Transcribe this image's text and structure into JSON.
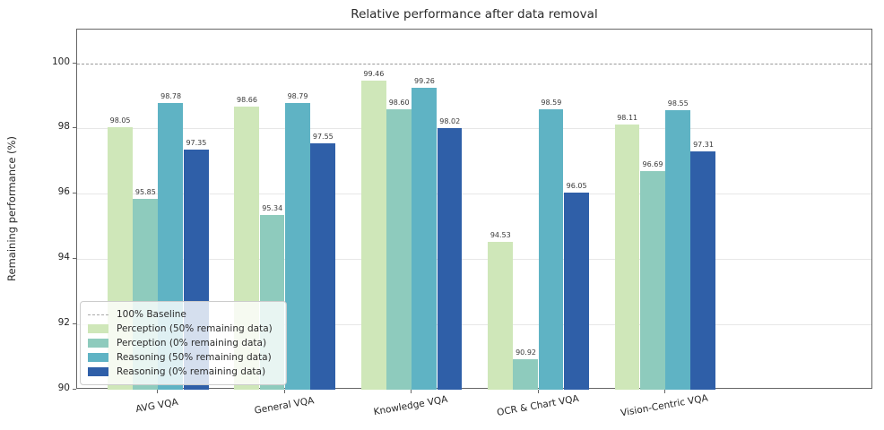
{
  "title": "Relative performance after data removal",
  "chart_data": {
    "type": "bar",
    "title": "Relative performance after data removal",
    "xlabel": "",
    "ylabel": "Remaining performance (%)",
    "categories": [
      "AVG VQA",
      "General VQA",
      "Knowledge VQA",
      "OCR & Chart VQA",
      "Vision-Centric VQA"
    ],
    "series": [
      {
        "name": "Perception (50% remaining data)",
        "color": "#cfe7b9",
        "values": [
          98.05,
          98.66,
          99.46,
          94.53,
          98.11
        ]
      },
      {
        "name": "Perception (0% remaining data)",
        "color": "#8ecbbd",
        "values": [
          95.85,
          95.34,
          98.6,
          90.92,
          96.69
        ]
      },
      {
        "name": "Reasoning (50% remaining data)",
        "color": "#5fb3c4",
        "values": [
          98.78,
          98.79,
          99.26,
          98.59,
          98.55
        ]
      },
      {
        "name": "Reasoning (0% remaining data)",
        "color": "#2f5fa8",
        "values": [
          97.35,
          97.55,
          98.02,
          96.05,
          97.31
        ]
      }
    ],
    "baseline": {
      "label": "100% Baseline",
      "value": 100
    },
    "yticks": [
      90,
      92,
      94,
      96,
      98,
      100
    ],
    "ylim": [
      90,
      101.03
    ],
    "grid": true,
    "legend_position": "lower left",
    "style": {
      "gridline_color": "#e7e7e7",
      "baseline_color": "#9a9a9a",
      "spine_color": "#666666",
      "value_label_color": "#3a3a3a"
    }
  }
}
